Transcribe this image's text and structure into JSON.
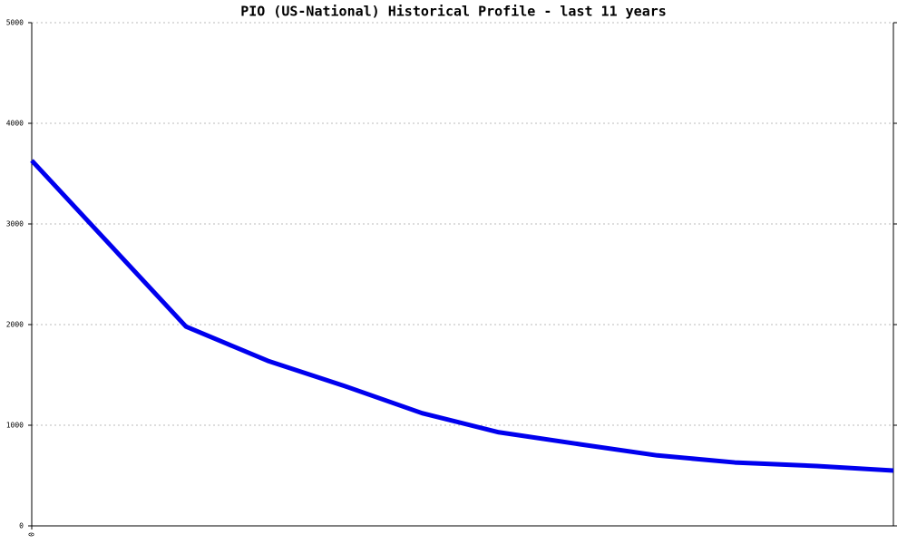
{
  "chart_data": {
    "type": "line",
    "title": "PIO (US-National) Historical Profile - last 11 years",
    "x": [
      0,
      1.79,
      2.74,
      3.63,
      4.53,
      5.42,
      6.37,
      7.26,
      8.16,
      9.11,
      10
    ],
    "series": [
      {
        "name": "PIO",
        "color": "#0000ee",
        "values": [
          3630,
          1980,
          1640,
          1390,
          1120,
          930,
          810,
          700,
          630,
          595,
          550
        ]
      }
    ],
    "xlim": [
      0,
      10
    ],
    "xticks": [
      0
    ],
    "ylim": [
      0,
      5000
    ],
    "yticks": [
      0,
      1000,
      2000,
      3000,
      4000,
      5000
    ],
    "grid": true
  }
}
